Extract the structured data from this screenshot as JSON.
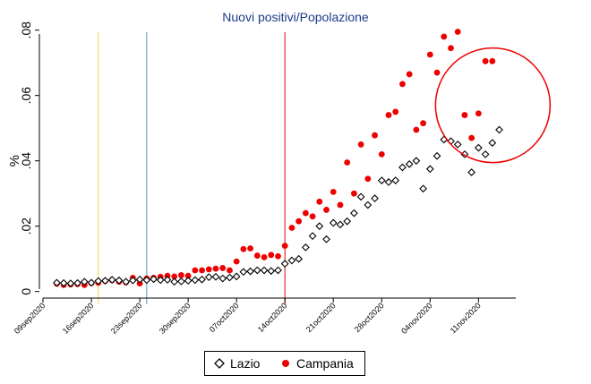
{
  "chart_data": {
    "type": "scatter",
    "title": "Nuovi positivi/Popolazione",
    "xlabel": "",
    "ylabel": "%",
    "x_ticks": [
      "09sep2020",
      "16sep2020",
      "23sep2020",
      "30sep2020",
      "07oct2020",
      "14oct2020",
      "21oct2020",
      "28oct2020",
      "04nov2020",
      "11nov2020"
    ],
    "y_ticks": [
      "0",
      ".02",
      ".04",
      ".06",
      ".08"
    ],
    "ylim": [
      -0.002,
      0.081
    ],
    "xlim_days_from_09sep2020": [
      0,
      70
    ],
    "vertical_lines": [
      {
        "date": "17sep2020",
        "color": "#f0e06a"
      },
      {
        "date": "24sep2020",
        "color": "#6aaed6"
      },
      {
        "date": "14oct2020",
        "color": "#e03030"
      }
    ],
    "annotation_circle": {
      "color": "#ee0000",
      "around": "latest Campania points"
    },
    "series": [
      {
        "name": "Lazio",
        "marker": "hollow-diamond",
        "color": "#000000",
        "points": [
          [
            "11sep2020",
            0.0027
          ],
          [
            "12sep2020",
            0.0026
          ],
          [
            "13sep2020",
            0.0025
          ],
          [
            "14sep2020",
            0.0026
          ],
          [
            "15sep2020",
            0.003
          ],
          [
            "16sep2020",
            0.0027
          ],
          [
            "17sep2020",
            0.0032
          ],
          [
            "18sep2020",
            0.0033
          ],
          [
            "19sep2020",
            0.0036
          ],
          [
            "20sep2020",
            0.0034
          ],
          [
            "21sep2020",
            0.003
          ],
          [
            "22sep2020",
            0.0034
          ],
          [
            "23sep2020",
            0.0037
          ],
          [
            "24sep2020",
            0.0035
          ],
          [
            "25sep2020",
            0.0038
          ],
          [
            "26sep2020",
            0.0035
          ],
          [
            "27sep2020",
            0.0036
          ],
          [
            "28sep2020",
            0.003
          ],
          [
            "29sep2020",
            0.0031
          ],
          [
            "30sep2020",
            0.0033
          ],
          [
            "01oct2020",
            0.0035
          ],
          [
            "02oct2020",
            0.0037
          ],
          [
            "03oct2020",
            0.0044
          ],
          [
            "04oct2020",
            0.0045
          ],
          [
            "05oct2020",
            0.004
          ],
          [
            "06oct2020",
            0.0043
          ],
          [
            "07oct2020",
            0.0046
          ],
          [
            "08oct2020",
            0.006
          ],
          [
            "09oct2020",
            0.0062
          ],
          [
            "10oct2020",
            0.0065
          ],
          [
            "11oct2020",
            0.0065
          ],
          [
            "12oct2020",
            0.0063
          ],
          [
            "13oct2020",
            0.0065
          ],
          [
            "14oct2020",
            0.0085
          ],
          [
            "15oct2020",
            0.0095
          ],
          [
            "16oct2020",
            0.01
          ],
          [
            "17oct2020",
            0.0135
          ],
          [
            "18oct2020",
            0.017
          ],
          [
            "19oct2020",
            0.02
          ],
          [
            "20oct2020",
            0.016
          ],
          [
            "21oct2020",
            0.021
          ],
          [
            "22oct2020",
            0.0205
          ],
          [
            "23oct2020",
            0.0215
          ],
          [
            "24oct2020",
            0.024
          ],
          [
            "25oct2020",
            0.029
          ],
          [
            "26oct2020",
            0.0265
          ],
          [
            "27oct2020",
            0.0285
          ],
          [
            "28oct2020",
            0.034
          ],
          [
            "29oct2020",
            0.0335
          ],
          [
            "30oct2020",
            0.034
          ],
          [
            "31oct2020",
            0.038
          ],
          [
            "01nov2020",
            0.039
          ],
          [
            "02nov2020",
            0.04
          ],
          [
            "03nov2020",
            0.0315
          ],
          [
            "04nov2020",
            0.0375
          ],
          [
            "05nov2020",
            0.0415
          ],
          [
            "06nov2020",
            0.0465
          ],
          [
            "07nov2020",
            0.046
          ],
          [
            "08nov2020",
            0.045
          ],
          [
            "09nov2020",
            0.042
          ],
          [
            "10nov2020",
            0.0365
          ],
          [
            "11nov2020",
            0.044
          ],
          [
            "12nov2020",
            0.042
          ],
          [
            "13nov2020",
            0.0455
          ],
          [
            "14nov2020",
            0.0495
          ]
        ]
      },
      {
        "name": "Campania",
        "marker": "filled-circle",
        "color": "#ee0000",
        "points": [
          [
            "11sep2020",
            0.0024
          ],
          [
            "12sep2020",
            0.002
          ],
          [
            "13sep2020",
            0.0022
          ],
          [
            "14sep2020",
            0.0023
          ],
          [
            "15sep2020",
            0.002
          ],
          [
            "16sep2020",
            0.0026
          ],
          [
            "17sep2020",
            0.0027
          ],
          [
            "18sep2020",
            0.0032
          ],
          [
            "19sep2020",
            0.0035
          ],
          [
            "20sep2020",
            0.003
          ],
          [
            "21sep2020",
            0.0028
          ],
          [
            "22sep2020",
            0.0042
          ],
          [
            "23sep2020",
            0.0025
          ],
          [
            "24sep2020",
            0.004
          ],
          [
            "25sep2020",
            0.0042
          ],
          [
            "26sep2020",
            0.0045
          ],
          [
            "27sep2020",
            0.0048
          ],
          [
            "28sep2020",
            0.0046
          ],
          [
            "29sep2020",
            0.005
          ],
          [
            "30sep2020",
            0.0048
          ],
          [
            "01oct2020",
            0.0065
          ],
          [
            "02oct2020",
            0.0065
          ],
          [
            "03oct2020",
            0.0068
          ],
          [
            "04oct2020",
            0.007
          ],
          [
            "05oct2020",
            0.0072
          ],
          [
            "06oct2020",
            0.0065
          ],
          [
            "07oct2020",
            0.0092
          ],
          [
            "08oct2020",
            0.013
          ],
          [
            "09oct2020",
            0.0132
          ],
          [
            "10oct2020",
            0.011
          ],
          [
            "11oct2020",
            0.0105
          ],
          [
            "12oct2020",
            0.0112
          ],
          [
            "13oct2020",
            0.0108
          ],
          [
            "14oct2020",
            0.014
          ],
          [
            "15oct2020",
            0.0195
          ],
          [
            "16oct2020",
            0.0215
          ],
          [
            "17oct2020",
            0.024
          ],
          [
            "18oct2020",
            0.023
          ],
          [
            "19oct2020",
            0.0275
          ],
          [
            "20oct2020",
            0.025
          ],
          [
            "21oct2020",
            0.0305
          ],
          [
            "22oct2020",
            0.0265
          ],
          [
            "23oct2020",
            0.0395
          ],
          [
            "24oct2020",
            0.03
          ],
          [
            "25oct2020",
            0.045
          ],
          [
            "26oct2020",
            0.0345
          ],
          [
            "27oct2020",
            0.0478
          ],
          [
            "28oct2020",
            0.042
          ],
          [
            "29oct2020",
            0.054
          ],
          [
            "30oct2020",
            0.055
          ],
          [
            "31oct2020",
            0.0635
          ],
          [
            "01nov2020",
            0.0665
          ],
          [
            "02nov2020",
            0.0495
          ],
          [
            "03nov2020",
            0.0515
          ],
          [
            "04nov2020",
            0.0725
          ],
          [
            "05nov2020",
            0.067
          ],
          [
            "06nov2020",
            0.078
          ],
          [
            "07nov2020",
            0.0745
          ],
          [
            "08nov2020",
            0.0795
          ],
          [
            "09nov2020",
            0.054
          ],
          [
            "10nov2020",
            0.047
          ],
          [
            "11nov2020",
            0.0545
          ],
          [
            "12nov2020",
            0.0705
          ],
          [
            "13nov2020",
            0.0705
          ]
        ]
      }
    ]
  }
}
